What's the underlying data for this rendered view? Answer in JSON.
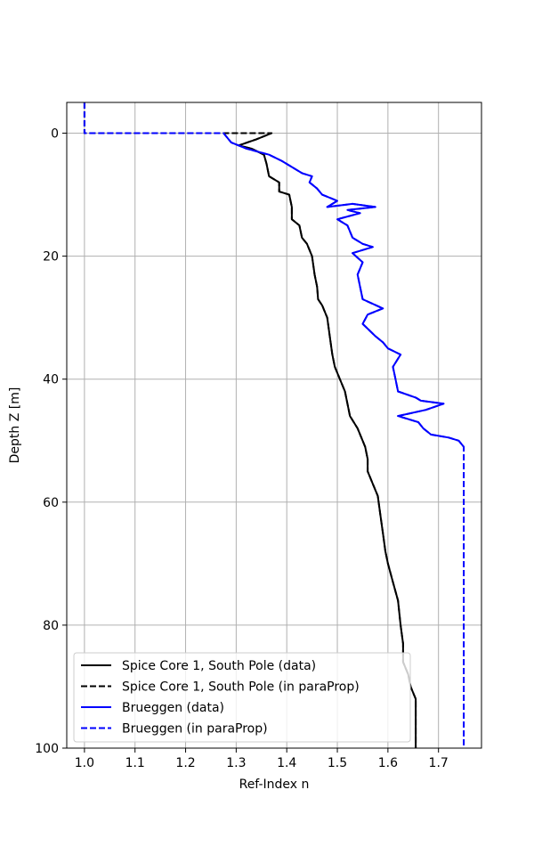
{
  "chart_data": {
    "type": "line",
    "xlabel": "Ref-Index n",
    "ylabel": "Depth Z [m]",
    "xlim": [
      0.965,
      1.785
    ],
    "ylim": [
      100,
      -5
    ],
    "y_inverted": true,
    "grid": true,
    "legend_location": "lower-left",
    "xticks": [
      1.0,
      1.1,
      1.2,
      1.3,
      1.4,
      1.5,
      1.6,
      1.7
    ],
    "xtick_labels": [
      "1.0",
      "1.1",
      "1.2",
      "1.3",
      "1.4",
      "1.5",
      "1.6",
      "1.7"
    ],
    "yticks": [
      0,
      20,
      40,
      60,
      80,
      100
    ],
    "ytick_labels": [
      "0",
      "20",
      "40",
      "60",
      "80",
      "100"
    ],
    "series": [
      {
        "name": "Spice Core 1, South Pole (data)",
        "color": "#000000",
        "style": "solid",
        "points": [
          [
            1.37,
            0
          ],
          [
            1.34,
            1
          ],
          [
            1.305,
            2
          ],
          [
            1.33,
            2.5
          ],
          [
            1.355,
            3.5
          ],
          [
            1.36,
            5
          ],
          [
            1.365,
            7
          ],
          [
            1.385,
            8
          ],
          [
            1.385,
            9.5
          ],
          [
            1.405,
            10
          ],
          [
            1.41,
            12
          ],
          [
            1.41,
            14
          ],
          [
            1.425,
            15
          ],
          [
            1.43,
            17
          ],
          [
            1.44,
            18
          ],
          [
            1.45,
            20
          ],
          [
            1.455,
            23
          ],
          [
            1.46,
            25
          ],
          [
            1.462,
            27
          ],
          [
            1.47,
            28
          ],
          [
            1.48,
            30
          ],
          [
            1.485,
            33
          ],
          [
            1.49,
            36
          ],
          [
            1.495,
            38
          ],
          [
            1.505,
            40
          ],
          [
            1.515,
            42
          ],
          [
            1.52,
            44
          ],
          [
            1.525,
            46
          ],
          [
            1.54,
            48
          ],
          [
            1.555,
            51
          ],
          [
            1.56,
            53
          ],
          [
            1.56,
            55
          ],
          [
            1.57,
            57
          ],
          [
            1.58,
            59
          ],
          [
            1.585,
            62
          ],
          [
            1.59,
            65
          ],
          [
            1.595,
            68
          ],
          [
            1.6,
            70
          ],
          [
            1.61,
            73
          ],
          [
            1.62,
            76
          ],
          [
            1.625,
            80
          ],
          [
            1.63,
            83
          ],
          [
            1.63,
            86
          ],
          [
            1.64,
            88
          ],
          [
            1.645,
            90
          ],
          [
            1.655,
            92
          ],
          [
            1.655,
            95
          ],
          [
            1.655,
            100
          ]
        ]
      },
      {
        "name": "Spice Core 1, South Pole (in paraProp)",
        "color": "#000000",
        "style": "dashed",
        "points": [
          [
            1.0,
            -5
          ],
          [
            1.0,
            0
          ],
          [
            1.37,
            0
          ],
          [
            1.34,
            1
          ],
          [
            1.305,
            2
          ],
          [
            1.33,
            2.5
          ],
          [
            1.355,
            3.5
          ],
          [
            1.36,
            5
          ],
          [
            1.365,
            7
          ],
          [
            1.385,
            8
          ],
          [
            1.385,
            9.5
          ],
          [
            1.405,
            10
          ],
          [
            1.41,
            12
          ],
          [
            1.41,
            14
          ],
          [
            1.425,
            15
          ],
          [
            1.43,
            17
          ],
          [
            1.44,
            18
          ],
          [
            1.45,
            20
          ],
          [
            1.455,
            23
          ],
          [
            1.46,
            25
          ],
          [
            1.462,
            27
          ],
          [
            1.47,
            28
          ],
          [
            1.48,
            30
          ],
          [
            1.485,
            33
          ],
          [
            1.49,
            36
          ],
          [
            1.495,
            38
          ],
          [
            1.505,
            40
          ],
          [
            1.515,
            42
          ],
          [
            1.52,
            44
          ],
          [
            1.525,
            46
          ],
          [
            1.54,
            48
          ],
          [
            1.555,
            51
          ],
          [
            1.56,
            53
          ],
          [
            1.56,
            55
          ],
          [
            1.57,
            57
          ],
          [
            1.58,
            59
          ],
          [
            1.585,
            62
          ],
          [
            1.59,
            65
          ],
          [
            1.595,
            68
          ],
          [
            1.6,
            70
          ],
          [
            1.61,
            73
          ],
          [
            1.62,
            76
          ],
          [
            1.625,
            80
          ],
          [
            1.63,
            83
          ],
          [
            1.63,
            86
          ],
          [
            1.64,
            88
          ],
          [
            1.645,
            90
          ],
          [
            1.655,
            92
          ],
          [
            1.655,
            95
          ],
          [
            1.655,
            100
          ]
        ]
      },
      {
        "name": "Brueggen (data)",
        "color": "#0000ff",
        "style": "solid",
        "points": [
          [
            1.275,
            0
          ],
          [
            1.29,
            1.5
          ],
          [
            1.32,
            2.5
          ],
          [
            1.365,
            3.5
          ],
          [
            1.39,
            4.5
          ],
          [
            1.41,
            5.5
          ],
          [
            1.43,
            6.5
          ],
          [
            1.45,
            7
          ],
          [
            1.445,
            8
          ],
          [
            1.46,
            9
          ],
          [
            1.47,
            10
          ],
          [
            1.5,
            11
          ],
          [
            1.48,
            12
          ],
          [
            1.53,
            11.5
          ],
          [
            1.575,
            12
          ],
          [
            1.52,
            12.5
          ],
          [
            1.545,
            13
          ],
          [
            1.5,
            14
          ],
          [
            1.52,
            15
          ],
          [
            1.53,
            17
          ],
          [
            1.55,
            18
          ],
          [
            1.57,
            18.5
          ],
          [
            1.53,
            19.5
          ],
          [
            1.55,
            21
          ],
          [
            1.54,
            23
          ],
          [
            1.545,
            25
          ],
          [
            1.55,
            27
          ],
          [
            1.59,
            28.5
          ],
          [
            1.56,
            29.5
          ],
          [
            1.55,
            31
          ],
          [
            1.575,
            33
          ],
          [
            1.59,
            34
          ],
          [
            1.6,
            35
          ],
          [
            1.625,
            36
          ],
          [
            1.61,
            38
          ],
          [
            1.615,
            40
          ],
          [
            1.62,
            42
          ],
          [
            1.655,
            43
          ],
          [
            1.665,
            43.5
          ],
          [
            1.71,
            44
          ],
          [
            1.675,
            45
          ],
          [
            1.62,
            46
          ],
          [
            1.66,
            47
          ],
          [
            1.67,
            48
          ],
          [
            1.685,
            49
          ],
          [
            1.72,
            49.5
          ],
          [
            1.74,
            50
          ],
          [
            1.75,
            51
          ]
        ]
      },
      {
        "name": "Brueggen (in paraProp)",
        "color": "#0000ff",
        "style": "dashed",
        "points": [
          [
            1.0,
            -5
          ],
          [
            1.0,
            0
          ],
          [
            1.275,
            0
          ],
          [
            1.29,
            1.5
          ],
          [
            1.32,
            2.5
          ],
          [
            1.365,
            3.5
          ],
          [
            1.39,
            4.5
          ],
          [
            1.41,
            5.5
          ],
          [
            1.43,
            6.5
          ],
          [
            1.45,
            7
          ],
          [
            1.445,
            8
          ],
          [
            1.46,
            9
          ],
          [
            1.47,
            10
          ],
          [
            1.5,
            11
          ],
          [
            1.48,
            12
          ],
          [
            1.53,
            11.5
          ],
          [
            1.575,
            12
          ],
          [
            1.52,
            12.5
          ],
          [
            1.545,
            13
          ],
          [
            1.5,
            14
          ],
          [
            1.52,
            15
          ],
          [
            1.53,
            17
          ],
          [
            1.55,
            18
          ],
          [
            1.57,
            18.5
          ],
          [
            1.53,
            19.5
          ],
          [
            1.55,
            21
          ],
          [
            1.54,
            23
          ],
          [
            1.545,
            25
          ],
          [
            1.55,
            27
          ],
          [
            1.59,
            28.5
          ],
          [
            1.56,
            29.5
          ],
          [
            1.55,
            31
          ],
          [
            1.575,
            33
          ],
          [
            1.59,
            34
          ],
          [
            1.6,
            35
          ],
          [
            1.625,
            36
          ],
          [
            1.61,
            38
          ],
          [
            1.615,
            40
          ],
          [
            1.62,
            42
          ],
          [
            1.655,
            43
          ],
          [
            1.665,
            43.5
          ],
          [
            1.71,
            44
          ],
          [
            1.675,
            45
          ],
          [
            1.62,
            46
          ],
          [
            1.66,
            47
          ],
          [
            1.67,
            48
          ],
          [
            1.685,
            49
          ],
          [
            1.72,
            49.5
          ],
          [
            1.74,
            50
          ],
          [
            1.75,
            51
          ],
          [
            1.75,
            100
          ]
        ]
      }
    ]
  }
}
